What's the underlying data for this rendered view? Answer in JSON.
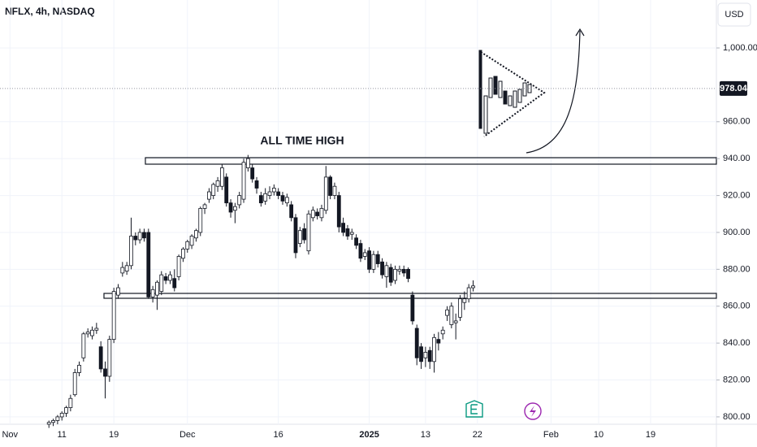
{
  "chart_data": {
    "type": "candlestick",
    "title": "NFLX, 4h, NASDAQ",
    "currency": "USD",
    "annotation": "ALL TIME HIGH",
    "last_price": 978.04,
    "ylim": [
      796,
      1026
    ],
    "yticks": [
      {
        "value": 800,
        "label": "800.00"
      },
      {
        "value": 820,
        "label": "820.00"
      },
      {
        "value": 840,
        "label": "840.00"
      },
      {
        "value": 860,
        "label": "860.00"
      },
      {
        "value": 880,
        "label": "880.00"
      },
      {
        "value": 900,
        "label": "900.00"
      },
      {
        "value": 920,
        "label": "920.00"
      },
      {
        "value": 940,
        "label": "940.00"
      },
      {
        "value": 960,
        "label": "960.00"
      },
      {
        "value": 1000,
        "label": "1,000.00"
      }
    ],
    "xlim": [
      -11.3,
      154.2
    ],
    "xticks": [
      {
        "value": -9,
        "label": "Nov"
      },
      {
        "value": 3,
        "label": "11"
      },
      {
        "value": 15,
        "label": "19"
      },
      {
        "value": 32,
        "label": "Dec"
      },
      {
        "value": 53,
        "label": "16"
      },
      {
        "value": 74,
        "label": "2025"
      },
      {
        "value": 87,
        "label": "13"
      },
      {
        "value": 99,
        "label": "22"
      },
      {
        "value": 116,
        "label": "Feb"
      },
      {
        "value": 127,
        "label": "10"
      },
      {
        "value": 139,
        "label": "19"
      }
    ],
    "ohlc": [
      [
        796,
        798,
        794,
        797
      ],
      [
        797,
        799,
        795,
        798
      ],
      [
        798,
        801,
        796,
        800
      ],
      [
        800,
        803,
        798,
        802
      ],
      [
        802,
        806,
        800,
        805
      ],
      [
        805,
        812,
        803,
        810
      ],
      [
        812,
        826,
        811,
        824
      ],
      [
        824,
        830,
        822,
        828
      ],
      [
        832,
        846,
        830,
        845
      ],
      [
        845,
        848,
        843,
        846
      ],
      [
        844,
        849,
        842,
        847
      ],
      [
        847,
        851,
        845,
        848
      ],
      [
        838,
        841,
        824,
        826
      ],
      [
        826,
        830,
        810,
        822
      ],
      [
        822,
        844,
        819,
        842
      ],
      [
        842,
        870,
        840,
        868
      ],
      [
        866,
        872,
        864,
        870
      ],
      [
        878,
        884,
        876,
        881
      ],
      [
        879,
        884,
        877,
        882
      ],
      [
        882,
        908,
        880,
        898
      ],
      [
        898,
        900,
        893,
        896
      ],
      [
        896,
        902,
        894,
        900
      ],
      [
        900,
        902,
        895,
        897
      ],
      [
        900,
        902,
        864,
        865
      ],
      [
        865,
        871,
        862,
        869
      ],
      [
        866,
        874,
        858,
        873
      ],
      [
        868,
        879,
        866,
        877
      ],
      [
        876,
        878,
        872,
        874
      ],
      [
        874,
        879,
        872,
        877
      ],
      [
        875,
        880,
        868,
        870
      ],
      [
        876,
        888,
        874,
        887
      ],
      [
        886,
        892,
        884,
        891
      ],
      [
        891,
        896,
        889,
        895
      ],
      [
        893,
        899,
        891,
        898
      ],
      [
        897,
        902,
        895,
        901
      ],
      [
        900,
        914,
        898,
        913
      ],
      [
        913,
        916,
        910,
        915
      ],
      [
        918,
        924,
        916,
        922
      ],
      [
        920,
        927,
        918,
        926
      ],
      [
        925,
        930,
        922,
        928
      ],
      [
        925,
        937,
        923,
        935
      ],
      [
        930,
        932,
        914,
        916
      ],
      [
        916,
        918,
        908,
        911
      ],
      [
        912,
        916,
        905,
        914
      ],
      [
        915,
        922,
        913,
        920
      ],
      [
        918,
        940,
        916,
        938
      ],
      [
        935,
        942,
        933,
        940
      ],
      [
        935,
        937,
        927,
        929
      ],
      [
        928,
        930,
        921,
        924
      ],
      [
        920,
        922,
        914,
        916
      ],
      [
        917,
        924,
        915,
        921
      ],
      [
        920,
        925,
        918,
        922
      ],
      [
        922,
        926,
        920,
        924
      ],
      [
        922,
        924,
        918,
        920
      ],
      [
        920,
        922,
        915,
        917
      ],
      [
        916,
        921,
        914,
        919
      ],
      [
        915,
        917,
        906,
        908
      ],
      [
        908,
        910,
        886,
        889
      ],
      [
        894,
        903,
        892,
        901
      ],
      [
        902,
        905,
        894,
        896
      ],
      [
        890,
        912,
        888,
        910
      ],
      [
        908,
        914,
        906,
        912
      ],
      [
        911,
        913,
        907,
        909
      ],
      [
        908,
        915,
        906,
        913
      ],
      [
        912,
        936,
        910,
        930
      ],
      [
        930,
        931,
        918,
        920
      ],
      [
        920,
        927,
        918,
        925
      ],
      [
        920,
        922,
        900,
        903
      ],
      [
        905,
        908,
        898,
        900
      ],
      [
        902,
        904,
        896,
        898
      ],
      [
        899,
        902,
        896,
        900
      ],
      [
        897,
        899,
        891,
        893
      ],
      [
        894,
        896,
        884,
        886
      ],
      [
        887,
        891,
        885,
        889
      ],
      [
        890,
        892,
        878,
        880
      ],
      [
        880,
        890,
        878,
        888
      ],
      [
        888,
        890,
        881,
        883
      ],
      [
        884,
        886,
        875,
        877
      ],
      [
        876,
        884,
        870,
        882
      ],
      [
        881,
        883,
        871,
        873
      ],
      [
        874,
        882,
        872,
        880
      ],
      [
        879,
        882,
        877,
        880
      ],
      [
        880,
        882,
        876,
        878
      ],
      [
        880,
        881,
        873,
        875
      ],
      [
        866,
        868,
        850,
        852
      ],
      [
        848,
        850,
        828,
        832
      ],
      [
        838,
        840,
        826,
        830
      ],
      [
        832,
        838,
        827,
        835
      ],
      [
        836,
        838,
        826,
        830
      ],
      [
        830,
        845,
        824,
        843
      ],
      [
        842,
        846,
        836,
        840
      ],
      [
        845,
        849,
        842,
        847
      ],
      [
        855,
        860,
        852,
        858
      ],
      [
        850,
        862,
        848,
        860
      ],
      [
        851,
        856,
        842,
        852
      ],
      [
        854,
        866,
        852,
        864
      ],
      [
        862,
        868,
        858,
        864
      ],
      [
        864,
        872,
        862,
        870
      ],
      [
        870,
        874,
        868,
        871
      ]
    ]
  }
}
